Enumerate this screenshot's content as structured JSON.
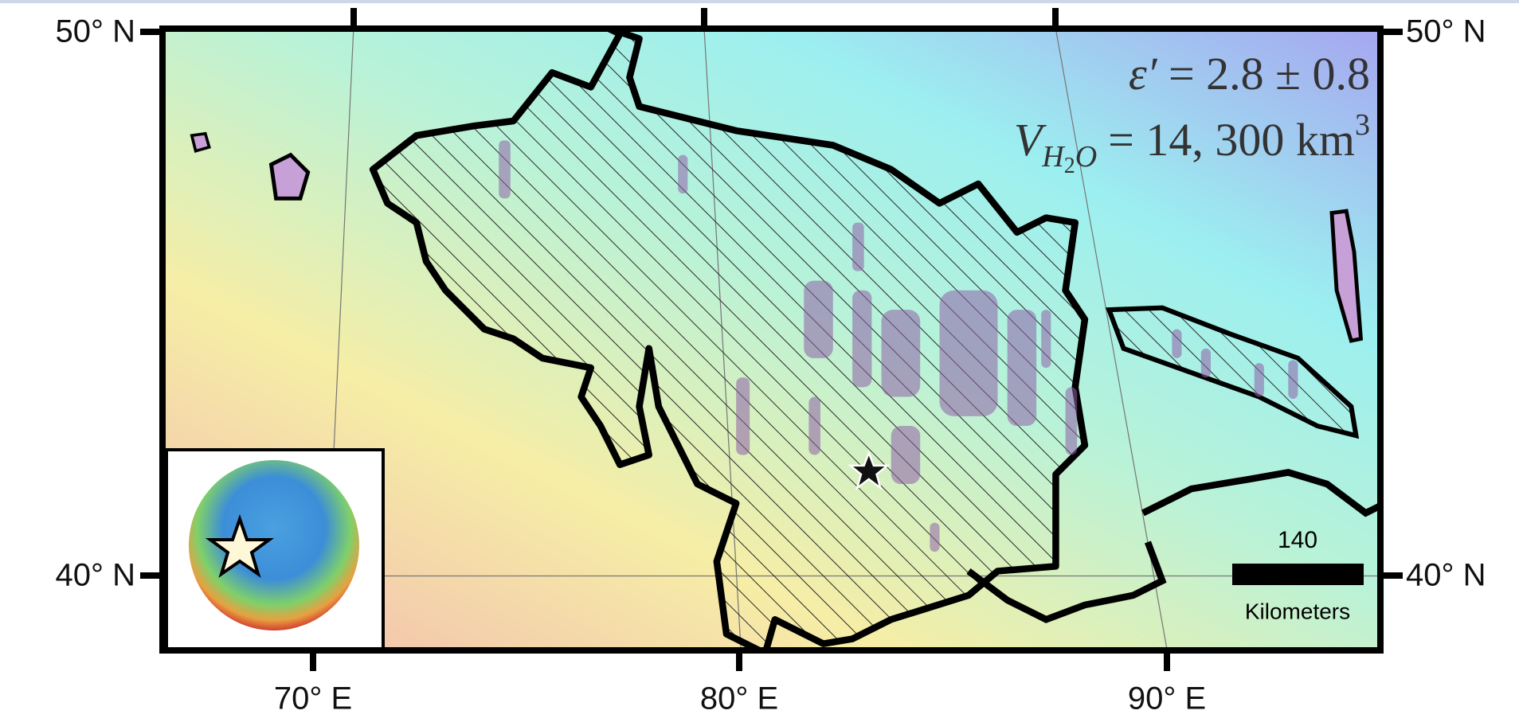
{
  "map": {
    "lat_labels_left": [
      "50° N",
      "40° N"
    ],
    "lat_labels_right": [
      "50° N",
      "40° N"
    ],
    "lon_labels": [
      "70° E",
      "80° E",
      "90° E"
    ],
    "annotation": {
      "line1": {
        "symbol": "ε′",
        "text": "= 2.8 ± 0.8"
      },
      "line2": {
        "symbol": "V",
        "sub1": "H",
        "sub2": "2",
        "sub3": "O",
        "text": "= 14, 300 km",
        "sup": "3"
      }
    },
    "scale_bar": {
      "value": "140",
      "unit": "Kilometers"
    }
  }
}
